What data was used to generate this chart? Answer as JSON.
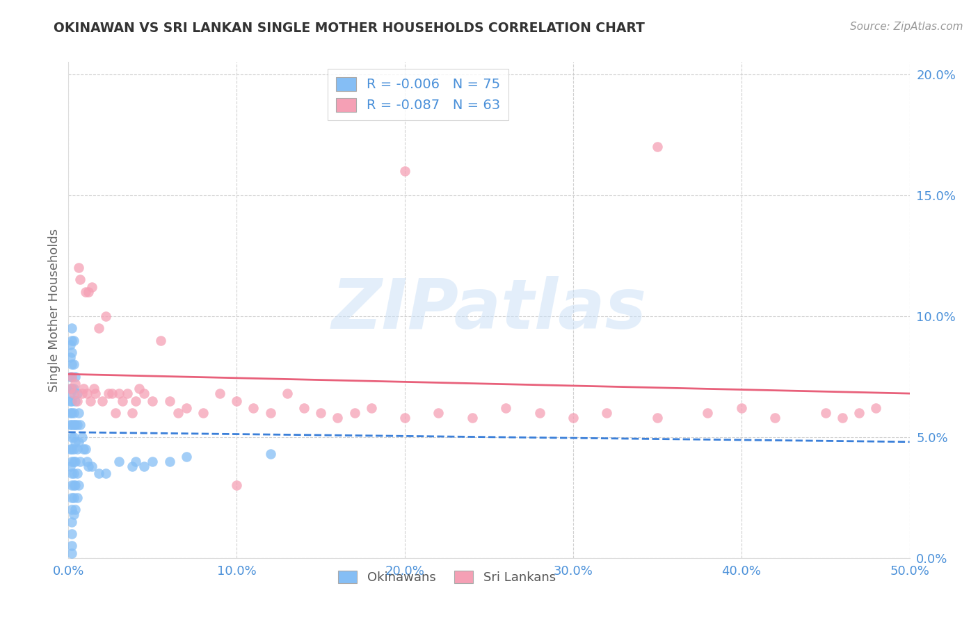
{
  "title": "OKINAWAN VS SRI LANKAN SINGLE MOTHER HOUSEHOLDS CORRELATION CHART",
  "source": "Source: ZipAtlas.com",
  "ylabel": "Single Mother Households",
  "xlim": [
    0.0,
    0.5
  ],
  "ylim": [
    0.0,
    0.205
  ],
  "xticks": [
    0.0,
    0.1,
    0.2,
    0.3,
    0.4,
    0.5
  ],
  "yticks": [
    0.0,
    0.05,
    0.1,
    0.15,
    0.2
  ],
  "xtick_labels": [
    "0.0%",
    "10.0%",
    "20.0%",
    "30.0%",
    "40.0%",
    "50.0%"
  ],
  "ytick_labels": [
    "0.0%",
    "5.0%",
    "10.0%",
    "15.0%",
    "20.0%"
  ],
  "okinawan_color": "#85bef5",
  "sri_lankan_color": "#f5a0b5",
  "okinawan_line_color": "#3a7fd9",
  "sri_lankan_line_color": "#e8607a",
  "background_color": "#ffffff",
  "grid_color": "#cccccc",
  "title_color": "#333333",
  "axis_label_color": "#555555",
  "tick_color": "#4a90d9",
  "okinawan_R": -0.006,
  "okinawan_N": 75,
  "sri_lankan_R": -0.087,
  "sri_lankan_N": 63,
  "watermark_text": "ZIPatlas",
  "okinawan_x": [
    0.001,
    0.001,
    0.001,
    0.001,
    0.001,
    0.001,
    0.001,
    0.001,
    0.001,
    0.001,
    0.002,
    0.002,
    0.002,
    0.002,
    0.002,
    0.002,
    0.002,
    0.002,
    0.002,
    0.002,
    0.002,
    0.002,
    0.002,
    0.002,
    0.002,
    0.002,
    0.002,
    0.002,
    0.002,
    0.002,
    0.003,
    0.003,
    0.003,
    0.003,
    0.003,
    0.003,
    0.003,
    0.003,
    0.003,
    0.003,
    0.003,
    0.003,
    0.004,
    0.004,
    0.004,
    0.004,
    0.004,
    0.004,
    0.004,
    0.005,
    0.005,
    0.005,
    0.005,
    0.005,
    0.006,
    0.006,
    0.006,
    0.007,
    0.007,
    0.008,
    0.009,
    0.01,
    0.011,
    0.012,
    0.014,
    0.018,
    0.022,
    0.03,
    0.038,
    0.04,
    0.045,
    0.05,
    0.06,
    0.07,
    0.12
  ],
  "okinawan_y": [
    0.088,
    0.083,
    0.075,
    0.07,
    0.068,
    0.065,
    0.06,
    0.055,
    0.045,
    0.038,
    0.095,
    0.09,
    0.085,
    0.08,
    0.075,
    0.07,
    0.065,
    0.06,
    0.055,
    0.05,
    0.045,
    0.04,
    0.035,
    0.03,
    0.025,
    0.02,
    0.015,
    0.01,
    0.005,
    0.002,
    0.09,
    0.08,
    0.07,
    0.06,
    0.055,
    0.05,
    0.045,
    0.04,
    0.035,
    0.03,
    0.025,
    0.018,
    0.075,
    0.065,
    0.055,
    0.048,
    0.04,
    0.03,
    0.02,
    0.068,
    0.055,
    0.045,
    0.035,
    0.025,
    0.06,
    0.048,
    0.03,
    0.055,
    0.04,
    0.05,
    0.045,
    0.045,
    0.04,
    0.038,
    0.038,
    0.035,
    0.035,
    0.04,
    0.038,
    0.04,
    0.038,
    0.04,
    0.04,
    0.042,
    0.043
  ],
  "sri_lankan_x": [
    0.001,
    0.002,
    0.003,
    0.004,
    0.005,
    0.006,
    0.007,
    0.008,
    0.009,
    0.01,
    0.011,
    0.012,
    0.013,
    0.014,
    0.015,
    0.016,
    0.018,
    0.02,
    0.022,
    0.024,
    0.026,
    0.028,
    0.03,
    0.032,
    0.035,
    0.038,
    0.04,
    0.042,
    0.045,
    0.05,
    0.055,
    0.06,
    0.065,
    0.07,
    0.08,
    0.09,
    0.1,
    0.11,
    0.12,
    0.13,
    0.14,
    0.15,
    0.16,
    0.17,
    0.18,
    0.2,
    0.22,
    0.24,
    0.26,
    0.28,
    0.3,
    0.32,
    0.35,
    0.38,
    0.4,
    0.42,
    0.45,
    0.46,
    0.47,
    0.48,
    0.35,
    0.2,
    0.1
  ],
  "sri_lankan_y": [
    0.07,
    0.075,
    0.068,
    0.072,
    0.065,
    0.12,
    0.115,
    0.068,
    0.07,
    0.11,
    0.068,
    0.11,
    0.065,
    0.112,
    0.07,
    0.068,
    0.095,
    0.065,
    0.1,
    0.068,
    0.068,
    0.06,
    0.068,
    0.065,
    0.068,
    0.06,
    0.065,
    0.07,
    0.068,
    0.065,
    0.09,
    0.065,
    0.06,
    0.062,
    0.06,
    0.068,
    0.065,
    0.062,
    0.06,
    0.068,
    0.062,
    0.06,
    0.058,
    0.06,
    0.062,
    0.058,
    0.06,
    0.058,
    0.062,
    0.06,
    0.058,
    0.06,
    0.058,
    0.06,
    0.062,
    0.058,
    0.06,
    0.058,
    0.06,
    0.062,
    0.17,
    0.16,
    0.03
  ]
}
